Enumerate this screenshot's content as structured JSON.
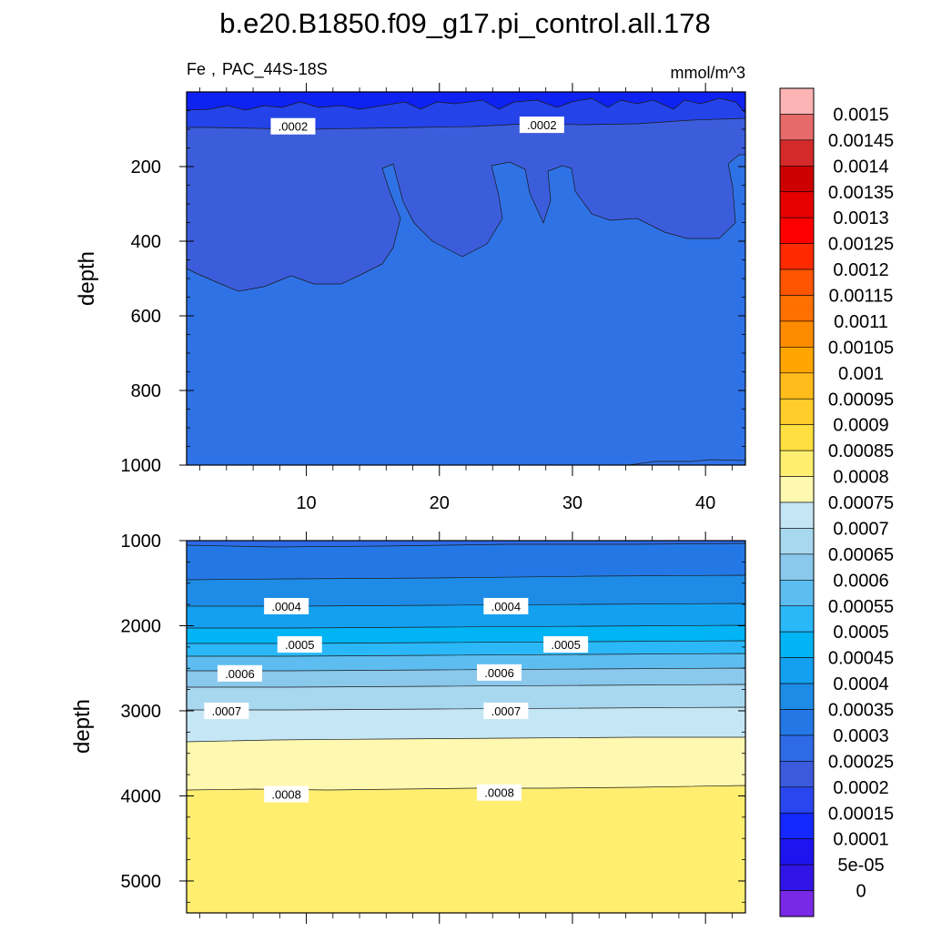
{
  "chart_data": {
    "type": "contour",
    "title": "b.e20.B1850.f09_g17.pi_control.all.178",
    "variable": "Fe",
    "region": "PAC_44S-18S",
    "units": "mmol/m^3",
    "xaxis": {
      "range": [
        1,
        43
      ],
      "ticks": [
        10,
        20,
        30,
        40
      ],
      "labels": [
        "10",
        "20",
        "30",
        "40"
      ]
    },
    "panels": [
      {
        "name": "upper",
        "ylabel": "depth",
        "ylim": [
          0,
          1000
        ],
        "yticks": [
          200,
          400,
          600,
          800,
          1000
        ],
        "ylabels": [
          "200",
          "400",
          "600",
          "800",
          "1000"
        ],
        "contour_labels": [
          {
            "text": ".0002",
            "x": 9,
            "y": 92
          },
          {
            "text": ".0002",
            "x": 27.7,
            "y": 88
          }
        ]
      },
      {
        "name": "lower",
        "ylabel": "depth",
        "ylim": [
          1000,
          5375
        ],
        "yticks": [
          1000,
          2000,
          3000,
          4000,
          5000
        ],
        "ylabels": [
          "1000",
          "2000",
          "3000",
          "4000",
          "5000"
        ],
        "contour_labels": [
          {
            "text": ".0004",
            "x": 8.5,
            "y": 1770
          },
          {
            "text": ".0004",
            "x": 25,
            "y": 1770
          },
          {
            "text": ".0005",
            "x": 9.5,
            "y": 2220
          },
          {
            "text": ".0005",
            "x": 29.5,
            "y": 2220
          },
          {
            "text": ".0006",
            "x": 5,
            "y": 2560
          },
          {
            "text": ".0006",
            "x": 24.5,
            "y": 2550
          },
          {
            "text": ".0007",
            "x": 4,
            "y": 3000
          },
          {
            "text": ".0007",
            "x": 25,
            "y": 3000
          },
          {
            "text": ".0008",
            "x": 8.5,
            "y": 3980
          },
          {
            "text": ".0008",
            "x": 24.5,
            "y": 3960
          }
        ]
      }
    ],
    "colorbar": {
      "labels": [
        "0.0015",
        "0.00145",
        "0.0014",
        "0.00135",
        "0.0013",
        "0.00125",
        "0.0012",
        "0.00115",
        "0.0011",
        "0.00105",
        "0.001",
        "0.00095",
        "0.0009",
        "0.00085",
        "0.0008",
        "0.00075",
        "0.0007",
        "0.00065",
        "0.0006",
        "0.00055",
        "0.0005",
        "0.00045",
        "0.0004",
        "0.00035",
        "0.0003",
        "0.00025",
        "0.0002",
        "0.00015",
        "0.0001",
        "5e-05",
        "0"
      ],
      "colors": [
        "#fbb4b4",
        "#e66a6a",
        "#d42a2a",
        "#cc0000",
        "#e60000",
        "#ff0000",
        "#ff2a00",
        "#ff5500",
        "#ff7000",
        "#ff8c00",
        "#ffa500",
        "#ffbc1c",
        "#ffcc2a",
        "#ffe040",
        "#ffee70",
        "#fff8b0",
        "#c5e6f5",
        "#a8d8f0",
        "#8ac8ec",
        "#5ebdf0",
        "#2ab8f8",
        "#00b4f5",
        "#14a0f0",
        "#1e8ce6",
        "#2478e6",
        "#2e6ae6",
        "#3c5adc",
        "#2a46f0",
        "#1428ff",
        "#1e14f0",
        "#3214e6",
        "#7828e6"
      ]
    }
  }
}
